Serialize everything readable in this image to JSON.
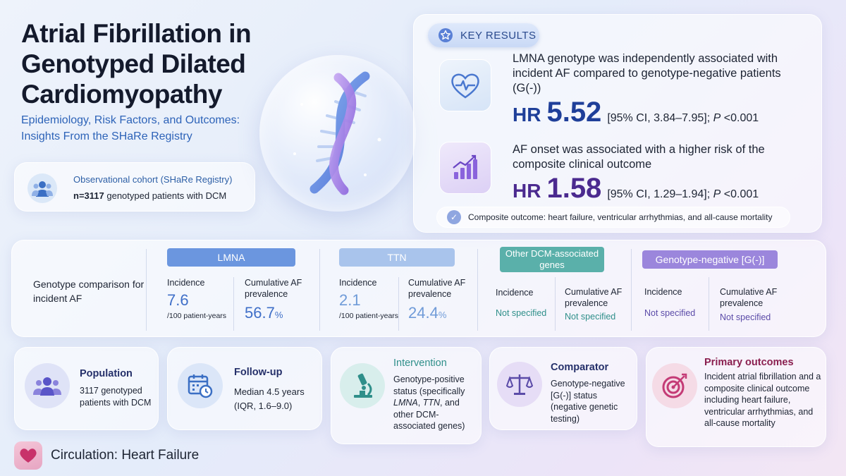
{
  "header": {
    "title": "Atrial Fibrillation in Genotyped Dilated Cardiomyopathy",
    "subtitle": "Epidemiology, Risk Factors, and Outcomes: Insights From the SHaRe Registry"
  },
  "cohort": {
    "line1": "Observational cohort (SHaRe Registry)",
    "n": "n=3117",
    "line2_rest": " genotyped patients with DCM",
    "icon": "people-icon"
  },
  "key_results": {
    "badge": "KEY RESULTS",
    "result1": {
      "text": "LMNA genotype was independently associated with incident AF compared to genotype-negative patients (G(-))",
      "hr_label": "HR",
      "hr_value": "5.52",
      "ci": "[95% CI, 3.84–7.95]; ",
      "p_label": "P",
      "p_value": " <0.001",
      "color": "#1f3f99",
      "icon": "heart-pulse-icon"
    },
    "result2": {
      "text": "AF onset was associated with a higher risk of the composite clinical outcome",
      "hr_label": "HR",
      "hr_value": "1.58",
      "ci": "[95% CI, 1.29–1.94]; ",
      "p_label": "P",
      "p_value": " <0.001",
      "color": "#4b2a8f",
      "icon": "bar-chart-icon"
    },
    "composite": "Composite outcome: heart failure, ventricular arrhythmias, and all-cause mortality"
  },
  "genotype": {
    "label": "Genotype comparison for incident AF",
    "groups": [
      {
        "name": "LMNA",
        "incidence_label": "Incidence",
        "incidence": "7.6",
        "unit": "/100 patient-years",
        "prev_label": "Cumulative AF prevalence",
        "prevalence": "56.7",
        "pct": "%",
        "color": "#3f6fc8",
        "pill": "#6b96df"
      },
      {
        "name": "TTN",
        "incidence_label": "Incidence",
        "incidence": "2.1",
        "unit": "/100 patient-years",
        "prev_label": "Cumulative AF prevalence",
        "prevalence": "24.4",
        "pct": "%",
        "color": "#6f9bd8",
        "pill": "#a9c4ec"
      },
      {
        "name": "Other DCM-associated genes",
        "incidence_label": "Incidence",
        "incidence": "Not specified",
        "prev_label": "Cumulative AF prevalence",
        "prevalence": "Not specified",
        "color": "#2f8f8a",
        "pill": "#5ab0aa"
      },
      {
        "name": "Genotype-negative [G(-)]",
        "incidence_label": "Incidence",
        "incidence": "Not specified",
        "prev_label": "Cumulative AF prevalence",
        "prevalence": "Not specified",
        "color": "#5b4ba8",
        "pill": "#9b86dc"
      }
    ]
  },
  "pico": [
    {
      "title": "Population",
      "body": "3117 genotyped patients with DCM",
      "color": "#25306a",
      "icon": "group-icon"
    },
    {
      "title": "Follow-up",
      "body": "Median 4.5 years (IQR, 1.6–9.0)",
      "color": "#25306a",
      "icon": "calendar-clock-icon"
    },
    {
      "title": "Intervention",
      "body_1": "Genotype-positive status (specifically ",
      "body_lmna": "LMNA",
      "body_2": ", ",
      "body_ttn": "TTN",
      "body_3": ", and other DCM-associated genes)",
      "color": "#2f8f8a",
      "icon": "microscope-icon"
    },
    {
      "title": "Comparator",
      "body": "Genotype-negative [G(-)] status (negative genetic testing)",
      "color": "#25306a",
      "icon": "scale-icon"
    },
    {
      "title": "Primary outcomes",
      "body": "Incident atrial fibrillation and a composite clinical outcome including heart failure, ventricular arrhythmias, and all-cause mortality",
      "color": "#8a1f4f",
      "icon": "target-icon"
    }
  ],
  "journal": "Circulation: Heart Failure"
}
